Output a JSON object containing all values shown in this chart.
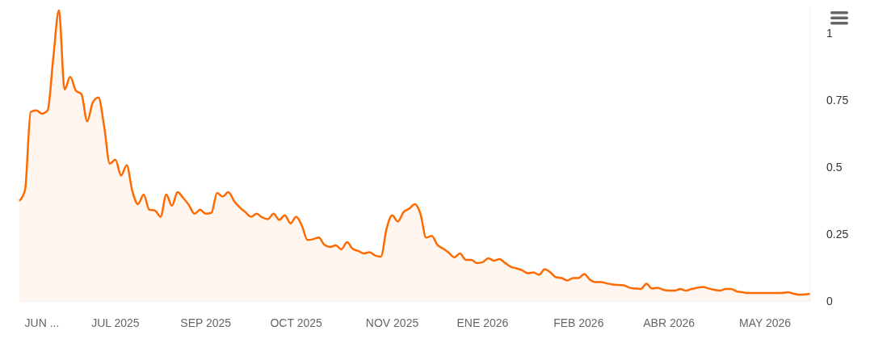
{
  "chart_data": {
    "type": "area",
    "categories": [
      null,
      null,
      null,
      null,
      "JUN ...",
      null,
      null,
      null,
      null,
      null,
      null,
      null,
      null,
      null,
      null,
      null,
      null,
      "JUL 2025",
      null,
      null,
      null,
      null,
      null,
      null,
      null,
      null,
      null,
      null,
      null,
      null,
      null,
      null,
      null,
      "SEP 2025",
      null,
      null,
      null,
      null,
      null,
      null,
      null,
      null,
      null,
      null,
      null,
      null,
      null,
      null,
      null,
      "OCT 2025",
      null,
      null,
      null,
      null,
      null,
      null,
      null,
      null,
      null,
      null,
      null,
      null,
      null,
      null,
      null,
      null,
      "NOV 2025",
      null,
      null,
      null,
      null,
      null,
      null,
      null,
      null,
      null,
      null,
      null,
      null,
      null,
      null,
      null,
      "ENE 2026",
      null,
      null,
      null,
      null,
      null,
      null,
      null,
      null,
      null,
      null,
      null,
      null,
      null,
      null,
      null,
      null,
      "FEB 2026",
      null,
      null,
      null,
      null,
      null,
      null,
      null,
      null,
      null,
      null,
      null,
      null,
      null,
      null,
      null,
      "ABR 2026",
      null,
      null,
      null,
      null,
      null,
      null,
      null,
      null,
      null,
      null,
      null,
      null,
      null,
      null,
      null,
      null,
      "MAY 2026",
      null,
      null,
      null,
      null,
      null,
      null,
      null,
      null
    ],
    "series": [
      {
        "color": "#ff6a00",
        "values": [
          0.374,
          0.415,
          0.706,
          0.712,
          0.7,
          0.712,
          0.908,
          1.086,
          0.79,
          0.837,
          0.786,
          0.772,
          0.671,
          0.742,
          0.76,
          0.653,
          0.513,
          0.528,
          0.469,
          0.507,
          0.41,
          0.362,
          0.398,
          0.341,
          0.338,
          0.315,
          0.398,
          0.356,
          0.407,
          0.385,
          0.359,
          0.326,
          0.341,
          0.326,
          0.33,
          0.404,
          0.39,
          0.407,
          0.374,
          0.35,
          0.332,
          0.315,
          0.326,
          0.312,
          0.306,
          0.326,
          0.303,
          0.32,
          0.29,
          0.315,
          0.282,
          0.228,
          0.231,
          0.237,
          0.21,
          0.202,
          0.208,
          0.193,
          0.22,
          0.195,
          0.187,
          0.178,
          0.182,
          0.17,
          0.166,
          0.27,
          0.32,
          0.297,
          0.332,
          0.345,
          0.362,
          0.326,
          0.237,
          0.243,
          0.21,
          0.196,
          0.181,
          0.163,
          0.178,
          0.154,
          0.154,
          0.142,
          0.145,
          0.16,
          0.151,
          0.157,
          0.142,
          0.128,
          0.122,
          0.115,
          0.104,
          0.107,
          0.098,
          0.119,
          0.107,
          0.089,
          0.086,
          0.077,
          0.086,
          0.086,
          0.101,
          0.08,
          0.071,
          0.071,
          0.066,
          0.062,
          0.06,
          0.059,
          0.05,
          0.047,
          0.045,
          0.065,
          0.047,
          0.05,
          0.042,
          0.039,
          0.039,
          0.045,
          0.039,
          0.045,
          0.05,
          0.053,
          0.047,
          0.042,
          0.039,
          0.045,
          0.045,
          0.036,
          0.033,
          0.03,
          0.03,
          0.03,
          0.03,
          0.03,
          0.03,
          0.03,
          0.033,
          0.028,
          0.024,
          0.025,
          0.027
        ]
      }
    ],
    "ylim": [
      0,
      1.1
    ],
    "yticks": [
      0,
      0.25,
      0.5,
      0.75,
      1
    ],
    "legend": false
  }
}
